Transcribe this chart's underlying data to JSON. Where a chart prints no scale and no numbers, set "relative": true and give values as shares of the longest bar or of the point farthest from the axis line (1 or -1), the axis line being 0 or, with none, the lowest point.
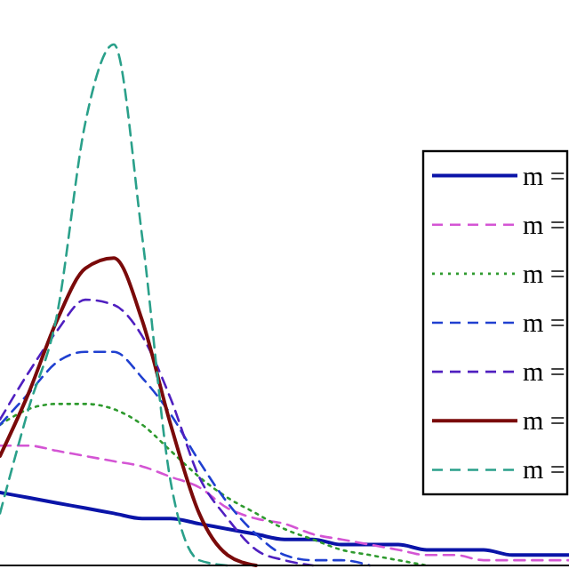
{
  "chart_data": {
    "type": "line",
    "relative": true,
    "legend": "right",
    "grid": false,
    "categories": [
      null,
      null,
      null,
      null,
      null,
      null,
      null,
      null,
      null,
      null,
      null,
      null,
      null,
      null,
      null,
      null,
      null,
      null,
      null,
      null,
      null
    ],
    "series": [
      {
        "name": "m =",
        "color": "#0a14a8",
        "line_style": "solid",
        "values": [
          0.14,
          0.13,
          0.12,
          0.11,
          0.1,
          0.09,
          0.09,
          0.08,
          0.07,
          0.06,
          0.05,
          0.05,
          0.04,
          0.04,
          0.04,
          0.03,
          0.03,
          0.03,
          0.02,
          0.02,
          0.02
        ]
      },
      {
        "name": "m =",
        "color": "#d455d4",
        "line_style": "dashed",
        "values": [
          0.23,
          0.23,
          0.22,
          0.21,
          0.2,
          0.19,
          0.17,
          0.15,
          0.11,
          0.09,
          0.08,
          0.06,
          0.05,
          0.04,
          0.03,
          0.02,
          0.02,
          0.01,
          0.01,
          0.01,
          0.01
        ]
      },
      {
        "name": "m =",
        "color": "#2e9a2e",
        "line_style": "dotted",
        "values": [
          0.27,
          0.3,
          0.31,
          0.31,
          0.3,
          0.27,
          0.22,
          0.17,
          0.13,
          0.1,
          0.07,
          0.05,
          0.03,
          0.02,
          0.01,
          0,
          null,
          null,
          null,
          null,
          null
        ]
      },
      {
        "name": "m =",
        "color": "#2040d0",
        "line_style": "dashed",
        "values": [
          0.27,
          0.33,
          0.39,
          0.41,
          0.41,
          0.36,
          0.29,
          0.2,
          0.12,
          0.06,
          0.02,
          0.01,
          0.01,
          0,
          null,
          null,
          null,
          null,
          null,
          null,
          null
        ]
      },
      {
        "name": "m =",
        "color": "#5020c0",
        "line_style": "dashed",
        "values": [
          0.28,
          0.37,
          0.45,
          0.51,
          0.5,
          0.44,
          0.32,
          0.17,
          0.09,
          0.03,
          0.01,
          0,
          null,
          null,
          null,
          null,
          null,
          null,
          null,
          null,
          null
        ]
      },
      {
        "name": "m =",
        "color": "#7a0a0a",
        "line_style": "solid",
        "values": [
          0.21,
          0.33,
          0.47,
          0.57,
          0.59,
          0.47,
          0.27,
          0.1,
          0.02,
          0,
          null,
          null,
          null,
          null,
          null,
          null,
          null,
          null,
          null,
          null,
          null
        ]
      },
      {
        "name": "m =",
        "color": "#2aa08a",
        "line_style": "dashed",
        "values": [
          0.1,
          0.3,
          0.48,
          0.85,
          1.0,
          0.63,
          0.16,
          0.01,
          0,
          null,
          null,
          null,
          null,
          null,
          null,
          null,
          null,
          null,
          null,
          null,
          null
        ]
      }
    ]
  }
}
